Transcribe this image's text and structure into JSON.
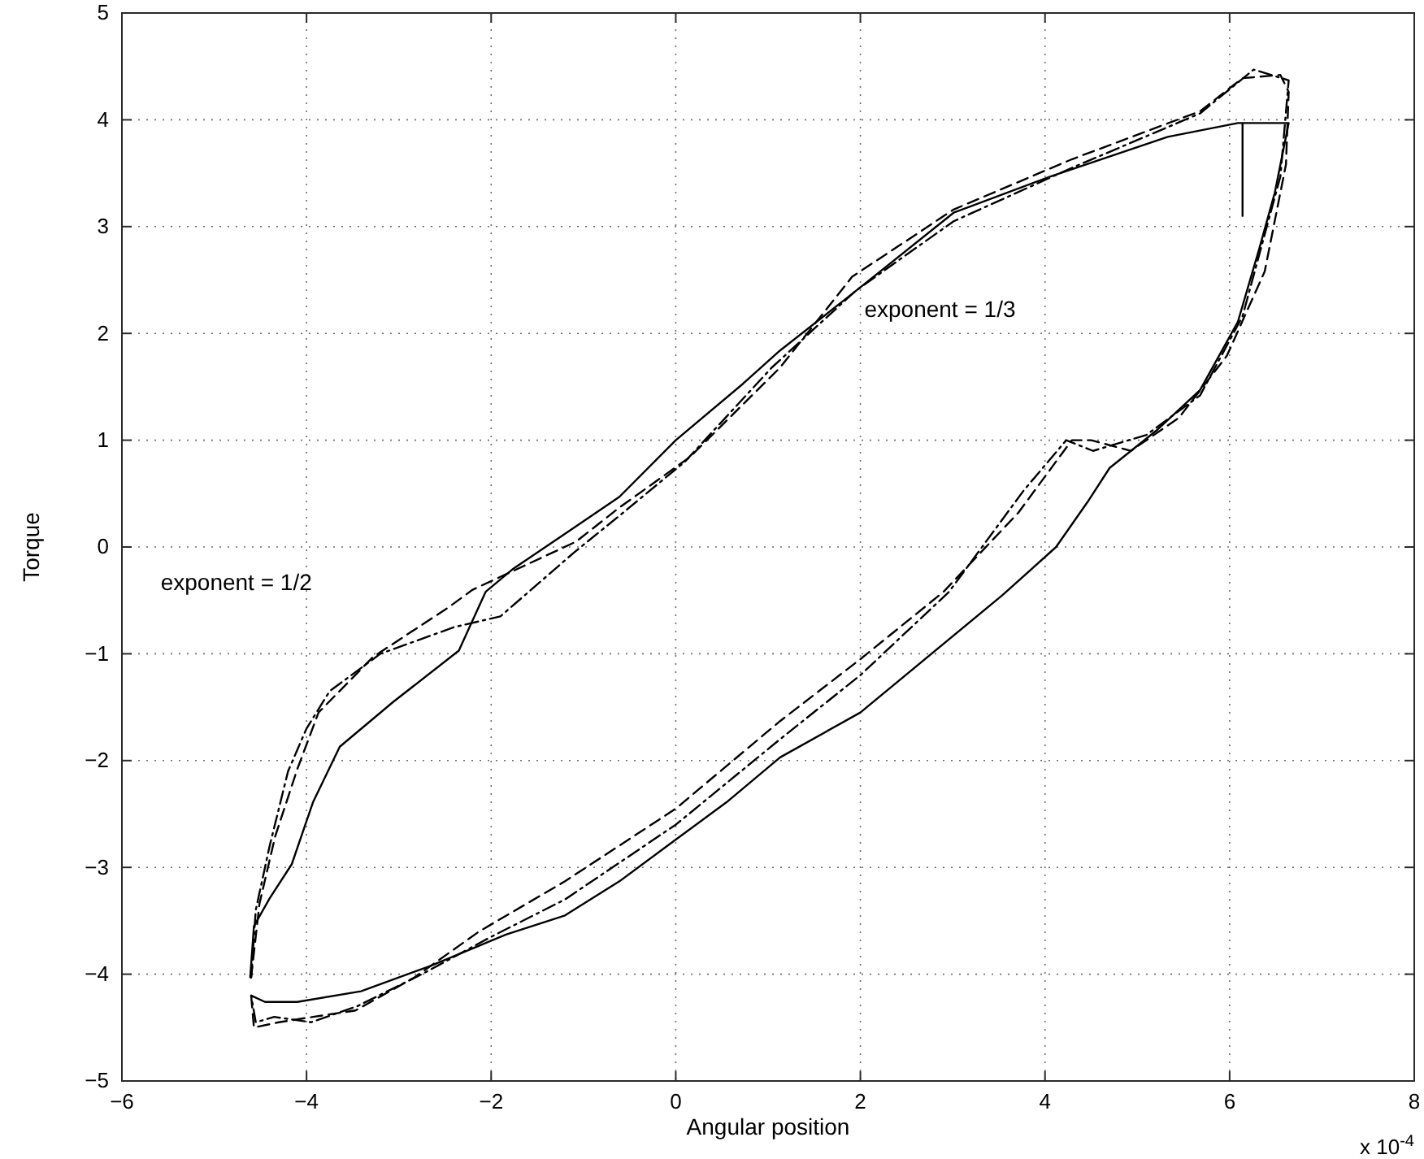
{
  "chart_data": {
    "type": "line",
    "xlabel": "Angular position",
    "ylabel": "Torque",
    "xlim": [
      -6,
      8
    ],
    "ylim": [
      -5,
      5
    ],
    "xticks": [
      -6,
      -4,
      -2,
      0,
      2,
      4,
      6,
      8
    ],
    "yticks": [
      -5,
      -4,
      -3,
      -2,
      -1,
      0,
      1,
      2,
      3,
      4,
      5
    ],
    "grid": true,
    "annotations": [
      "exponent = 1/3",
      "exponent = 1/2",
      "x 10$^{-4}$"
    ],
    "series": [
      {
        "color": "#000000",
        "line_style": "solid",
        "x": [
          -4.61,
          -4.57,
          -4.4,
          -4.16,
          -3.93,
          -3.64,
          -3.06,
          -2.35,
          -2.06,
          -1.77,
          -1.19,
          -0.61,
          0,
          0.73,
          1.13,
          1.91,
          3.01,
          4.06,
          5.33,
          6.09,
          6.14,
          6.14,
          6.14,
          6.64,
          6.49,
          6.32,
          6.09,
          5.68,
          5.22,
          4.7,
          4.46,
          4.12,
          3.54,
          2,
          1.13,
          0.55,
          0,
          -0.61,
          -1.2,
          -1.84,
          -2.65,
          -3.41,
          -4.1,
          -4.45,
          -4.6
        ],
        "values": [
          -4.03,
          -3.55,
          -3.29,
          -2.97,
          -2.39,
          -1.87,
          -1.45,
          -0.97,
          -0.42,
          -0.21,
          0.13,
          0.47,
          1.0,
          1.53,
          1.84,
          2.37,
          3.13,
          3.47,
          3.84,
          3.97,
          3.97,
          3.1,
          3.97,
          3.97,
          3.32,
          2.79,
          2.11,
          1.47,
          1.1,
          0.74,
          0.42,
          0,
          -0.45,
          -1.55,
          -1.97,
          -2.39,
          -2.74,
          -3.13,
          -3.45,
          -3.63,
          -3.92,
          -4.16,
          -4.26,
          -4.26,
          -4.2
        ]
      },
      {
        "color": "#000000",
        "line_style": "dashed",
        "x": [
          -4.6,
          -4.51,
          -4.34,
          -4.1,
          -3.87,
          -3.28,
          -2.47,
          -2.2,
          -1.08,
          -0.61,
          0.15,
          1.13,
          1.91,
          3.01,
          4.29,
          5.68,
          6.14,
          6.55,
          6.64,
          6.61,
          6.38,
          5.97,
          5.45,
          4.93,
          4.5,
          4.29,
          3.71,
          2.9,
          2,
          1.13,
          0,
          -1.2,
          -2.13,
          -2.83,
          -3.47,
          -3.93,
          -4.3,
          -4.57,
          -4.6
        ],
        "values": [
          -4.03,
          -3.34,
          -2.71,
          -2.08,
          -1.55,
          -1.03,
          -0.57,
          -0.4,
          0.05,
          0.37,
          0.84,
          1.68,
          2.53,
          3.16,
          3.63,
          4.08,
          4.39,
          4.42,
          4.26,
          3.58,
          2.58,
          1.79,
          1.21,
          0.9,
          1.0,
          1.0,
          0.32,
          -0.42,
          -1.05,
          -1.63,
          -2.45,
          -3.13,
          -3.6,
          -4.03,
          -4.34,
          -4.4,
          -4.45,
          -4.5,
          -4.2
        ]
      },
      {
        "color": "#000000",
        "line_style": "dashdot",
        "x": [
          -4.6,
          -4.55,
          -4.4,
          -4.2,
          -4.0,
          -3.75,
          -3.2,
          -2.4,
          -1.9,
          -1.1,
          -0.6,
          0.1,
          1.04,
          1.95,
          3.01,
          4.29,
          5.68,
          6.26,
          6.64,
          6.55,
          6.14,
          5.68,
          5.1,
          4.52,
          4.23,
          3.77,
          2.96,
          2,
          1.13,
          0,
          -1.2,
          -2.0,
          -2.75,
          -3.45,
          -3.95,
          -4.35,
          -4.55,
          -4.6
        ],
        "values": [
          -4.03,
          -3.4,
          -2.8,
          -2.1,
          -1.7,
          -1.35,
          -1.0,
          -0.75,
          -0.65,
          -0.05,
          0.3,
          0.8,
          1.68,
          2.4,
          3.05,
          3.55,
          4.06,
          4.47,
          4.37,
          3.47,
          2.16,
          1.42,
          1.05,
          0.9,
          1.0,
          0.53,
          -0.42,
          -1.2,
          -1.8,
          -2.6,
          -3.3,
          -3.65,
          -4.0,
          -4.3,
          -4.45,
          -4.4,
          -4.45,
          -4.2
        ]
      }
    ]
  }
}
